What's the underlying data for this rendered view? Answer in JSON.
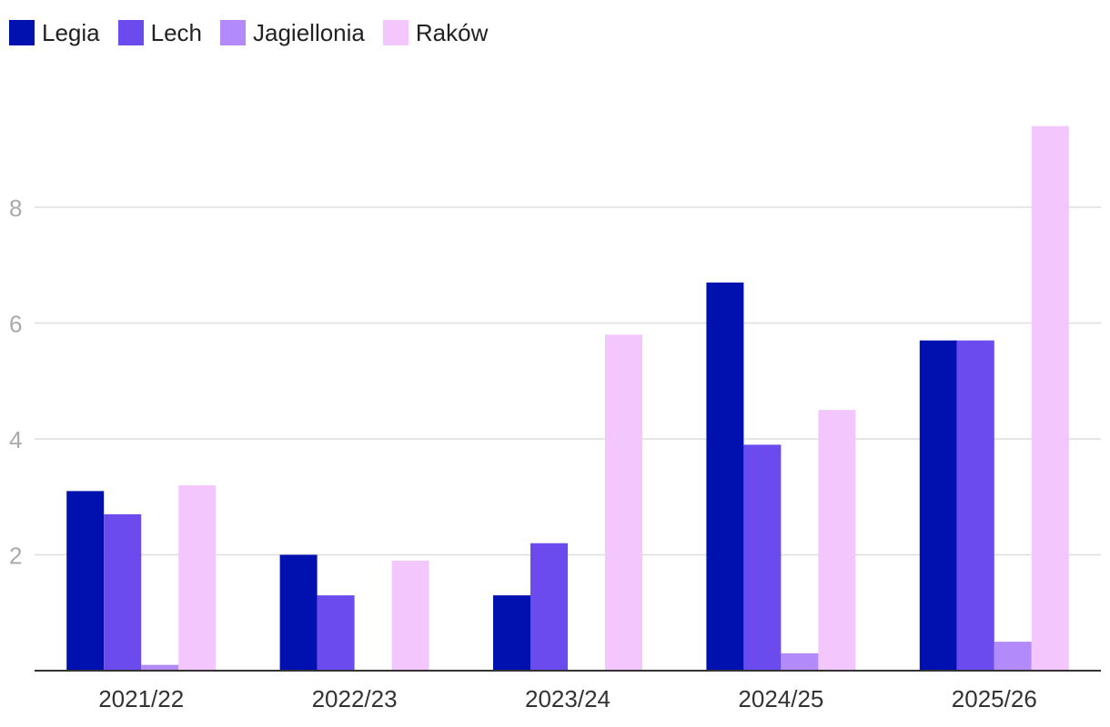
{
  "legend": [
    {
      "name": "Legia",
      "color": "#0011b0"
    },
    {
      "name": "Lech",
      "color": "#6b4bed"
    },
    {
      "name": "Jagiellonia",
      "color": "#b28afa"
    },
    {
      "name": "Raków",
      "color": "#f3c7fd"
    }
  ],
  "chart_data": {
    "type": "bar",
    "categories": [
      "2021/22",
      "2022/23",
      "2023/24",
      "2024/25",
      "2025/26"
    ],
    "series": [
      {
        "name": "Legia",
        "color": "#0011b0",
        "values": [
          3.1,
          2.0,
          1.3,
          6.7,
          5.7
        ]
      },
      {
        "name": "Lech",
        "color": "#6b4bed",
        "values": [
          2.7,
          1.3,
          2.2,
          3.9,
          5.7
        ]
      },
      {
        "name": "Jagiellonia",
        "color": "#b28afa",
        "values": [
          0.1,
          0,
          0,
          0.3,
          0.5
        ]
      },
      {
        "name": "Raków",
        "color": "#f3c7fd",
        "values": [
          3.2,
          1.9,
          5.8,
          4.5,
          9.4
        ]
      }
    ],
    "yticks": [
      2,
      4,
      6,
      8
    ],
    "ylim": [
      0,
      10.5
    ],
    "grid": true,
    "legend_position": "top-left",
    "title": "",
    "xlabel": "",
    "ylabel": ""
  }
}
